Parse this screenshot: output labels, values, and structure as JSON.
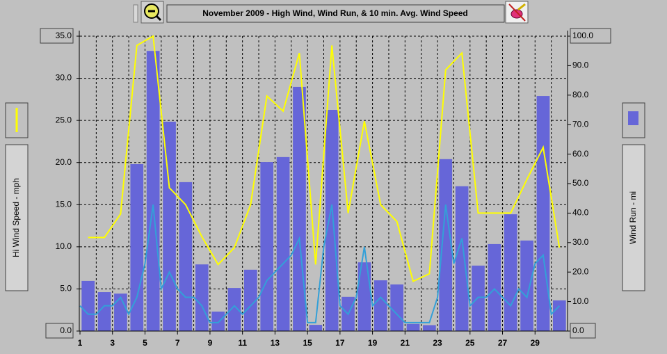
{
  "chart_data": {
    "type": "combo",
    "title": "November 2009 - High Wind, Wind Run, & 10 min. Avg. Wind Speed",
    "y_label": "Hi Wind Speed - mph",
    "y2_label": "Wind Run - mi",
    "days": [
      1,
      2,
      3,
      4,
      5,
      6,
      7,
      8,
      9,
      10,
      11,
      12,
      13,
      14,
      15,
      16,
      17,
      18,
      19,
      20,
      21,
      22,
      23,
      24,
      25,
      26,
      27,
      28,
      29,
      30
    ],
    "xlim": [
      1,
      31
    ],
    "xticks": [
      1,
      3,
      5,
      7,
      9,
      11,
      13,
      15,
      17,
      19,
      21,
      23,
      25,
      27,
      29
    ],
    "ylim": [
      0,
      35
    ],
    "yticks": [
      {
        "value": 0,
        "label": "0.0"
      },
      {
        "value": 5,
        "label": "5.0"
      },
      {
        "value": 10,
        "label": "10.0"
      },
      {
        "value": 15,
        "label": "15.0"
      },
      {
        "value": 20,
        "label": "20.0"
      },
      {
        "value": 25,
        "label": "25.0"
      },
      {
        "value": 30,
        "label": "30.0"
      },
      {
        "value": 35,
        "label": "35.0"
      }
    ],
    "y2lim": [
      0,
      100
    ],
    "y2ticks": [
      {
        "value": 0,
        "label": "0.0"
      },
      {
        "value": 10,
        "label": "10.0"
      },
      {
        "value": 20,
        "label": "20.0"
      },
      {
        "value": 30,
        "label": "30.0"
      },
      {
        "value": 40,
        "label": "40.0"
      },
      {
        "value": 50,
        "label": "50.0"
      },
      {
        "value": 60,
        "label": "60.0"
      },
      {
        "value": 70,
        "label": "70.0"
      },
      {
        "value": 80,
        "label": "80.0"
      },
      {
        "value": 90,
        "label": "90.0"
      },
      {
        "value": 100,
        "label": "100.0"
      }
    ],
    "grid": true,
    "series": [
      {
        "type": "bar",
        "axis": "y2",
        "color": "#6666d8",
        "values": [
          17.0,
          13.2,
          12.7,
          56.6,
          95.0,
          71.0,
          50.5,
          22.6,
          6.6,
          14.6,
          20.8,
          57.3,
          59.0,
          82.8,
          2.1,
          75.0,
          11.6,
          23.3,
          17.2,
          15.8,
          2.4,
          2.0,
          58.3,
          49.1,
          22.2,
          29.5,
          39.6,
          30.7,
          79.7,
          10.4
        ]
      },
      {
        "type": "area",
        "color": "#33a0d8",
        "x": [
          1,
          1.5,
          2,
          2.5,
          3,
          3.5,
          4,
          4.5,
          5,
          5.5,
          6,
          6.5,
          7,
          7.5,
          8,
          8.5,
          9,
          9.5,
          10,
          10.5,
          11,
          11.5,
          12,
          12.5,
          13,
          13.5,
          14,
          14.5,
          15,
          15.5,
          16,
          16.5,
          17,
          17.5,
          18,
          18.5,
          19,
          19.5,
          20,
          20.5,
          21,
          21.5,
          22,
          22.5,
          23,
          23.5,
          24,
          24.5,
          25,
          25.5,
          26,
          26.5,
          27,
          27.5,
          28,
          28.5,
          29,
          29.5,
          30,
          30.5
        ],
        "values": [
          3,
          2,
          2,
          3,
          3,
          4,
          2,
          4,
          8,
          15,
          5,
          7,
          5,
          4,
          4,
          3,
          1,
          1,
          2,
          3,
          2,
          3,
          4,
          6,
          7,
          8,
          9,
          11,
          1,
          1,
          10,
          15,
          3,
          2,
          4,
          10,
          3,
          4,
          3,
          2,
          1,
          1,
          1,
          1,
          4,
          15,
          8,
          11,
          3,
          4,
          4,
          5,
          4,
          3,
          5,
          4,
          8,
          9,
          2,
          3
        ]
      },
      {
        "type": "line",
        "color": "#ffff00",
        "values": [
          11.1,
          11.1,
          13.9,
          33.9,
          35.0,
          17.0,
          15.0,
          11.2,
          7.9,
          9.9,
          15.0,
          27.9,
          26.1,
          33.0,
          7.9,
          33.9,
          14.0,
          24.9,
          15.0,
          13.0,
          5.9,
          6.8,
          31.0,
          33.0,
          14.0,
          14.0,
          14.0,
          18.0,
          21.8,
          9.9
        ]
      }
    ]
  }
}
